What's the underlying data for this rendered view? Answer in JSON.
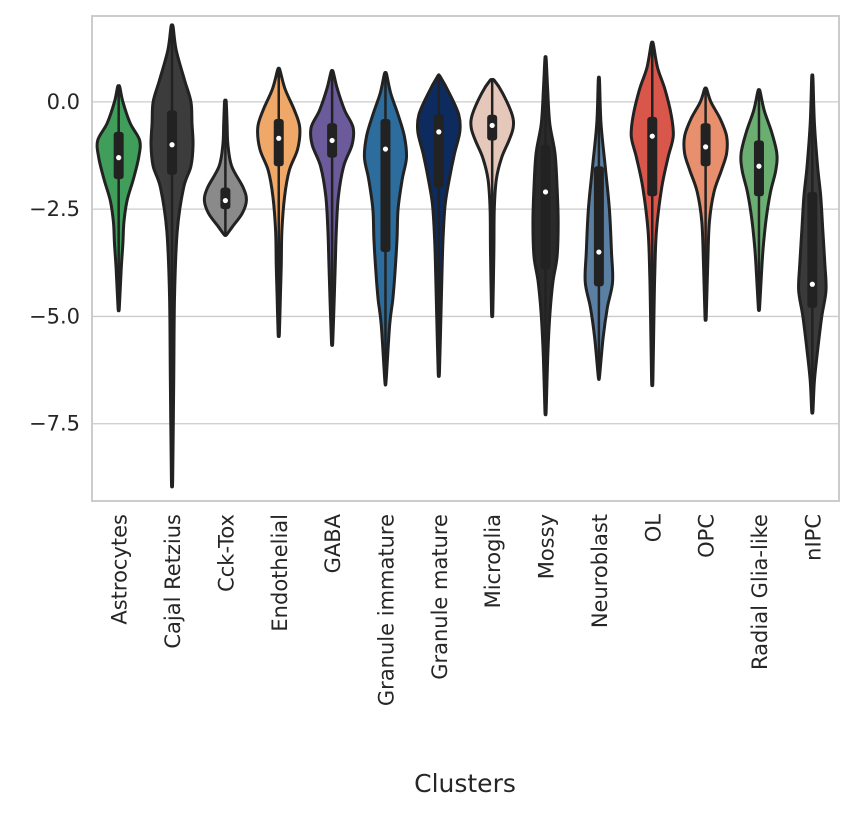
{
  "chart_data": {
    "type": "violin",
    "xlabel": "Clusters",
    "ylabel": "",
    "ylim": [
      -9.3,
      2.0
    ],
    "yticks": [
      0.0,
      -2.5,
      -5.0,
      -7.5
    ],
    "ytick_labels": [
      "0.0",
      "−2.5",
      "−5.0",
      "−7.5"
    ],
    "grid": "horizontal",
    "categories": [
      {
        "name": "Astrocytes",
        "color": "#3f9e5a",
        "min": -4.8,
        "max": 0.35,
        "q1": -1.8,
        "q3": -0.7,
        "median": -1.3,
        "profile": [
          [
            0.35,
            0.05
          ],
          [
            0.0,
            0.2
          ],
          [
            -0.5,
            0.55
          ],
          [
            -0.9,
            1.0
          ],
          [
            -1.3,
            0.95
          ],
          [
            -1.8,
            0.7
          ],
          [
            -2.3,
            0.4
          ],
          [
            -2.8,
            0.25
          ],
          [
            -3.3,
            0.2
          ],
          [
            -3.9,
            0.12
          ],
          [
            -4.8,
            0.03
          ]
        ]
      },
      {
        "name": "Cajal Retzius",
        "color": "#3c3c3c",
        "min": -8.8,
        "max": 1.75,
        "q1": -1.7,
        "q3": -0.2,
        "median": -1.0,
        "profile": [
          [
            1.75,
            0.05
          ],
          [
            1.2,
            0.2
          ],
          [
            0.5,
            0.6
          ],
          [
            0.0,
            0.9
          ],
          [
            -0.5,
            0.95
          ],
          [
            -1.0,
            1.0
          ],
          [
            -1.5,
            0.9
          ],
          [
            -2.0,
            0.55
          ],
          [
            -3.0,
            0.25
          ],
          [
            -4.5,
            0.12
          ],
          [
            -6.5,
            0.08
          ],
          [
            -8.8,
            0.03
          ]
        ]
      },
      {
        "name": "Cck-Tox",
        "color": "#8a8a8a",
        "min": -3.1,
        "max": 0.0,
        "q1": -2.5,
        "q3": -2.0,
        "median": -2.3,
        "profile": [
          [
            0.0,
            0.04
          ],
          [
            -0.5,
            0.08
          ],
          [
            -1.0,
            0.12
          ],
          [
            -1.5,
            0.3
          ],
          [
            -2.0,
            0.85
          ],
          [
            -2.3,
            1.0
          ],
          [
            -2.6,
            0.8
          ],
          [
            -2.9,
            0.35
          ],
          [
            -3.1,
            0.05
          ]
        ]
      },
      {
        "name": "Endothelial",
        "color": "#f0a868",
        "min": -5.4,
        "max": 0.75,
        "q1": -1.5,
        "q3": -0.4,
        "median": -0.85,
        "profile": [
          [
            0.75,
            0.05
          ],
          [
            0.3,
            0.3
          ],
          [
            -0.2,
            0.75
          ],
          [
            -0.6,
            1.0
          ],
          [
            -1.1,
            0.9
          ],
          [
            -1.6,
            0.5
          ],
          [
            -2.2,
            0.28
          ],
          [
            -3.0,
            0.15
          ],
          [
            -3.8,
            0.12
          ],
          [
            -4.5,
            0.08
          ],
          [
            -5.4,
            0.03
          ]
        ]
      },
      {
        "name": "GABA",
        "color": "#6b5b9a",
        "min": -5.6,
        "max": 0.7,
        "q1": -1.3,
        "q3": -0.5,
        "median": -0.9,
        "profile": [
          [
            0.7,
            0.05
          ],
          [
            0.3,
            0.25
          ],
          [
            -0.2,
            0.6
          ],
          [
            -0.6,
            1.0
          ],
          [
            -1.0,
            0.95
          ],
          [
            -1.5,
            0.55
          ],
          [
            -2.2,
            0.3
          ],
          [
            -3.0,
            0.2
          ],
          [
            -3.8,
            0.15
          ],
          [
            -4.6,
            0.1
          ],
          [
            -5.6,
            0.03
          ]
        ]
      },
      {
        "name": "Granule immature",
        "color": "#2c6d9e",
        "min": -6.5,
        "max": 0.65,
        "q1": -3.5,
        "q3": -0.4,
        "median": -1.1,
        "profile": [
          [
            0.65,
            0.05
          ],
          [
            0.2,
            0.25
          ],
          [
            -0.3,
            0.6
          ],
          [
            -0.8,
            0.9
          ],
          [
            -1.3,
            1.0
          ],
          [
            -1.8,
            0.8
          ],
          [
            -2.5,
            0.6
          ],
          [
            -3.2,
            0.55
          ],
          [
            -4.0,
            0.45
          ],
          [
            -4.6,
            0.35
          ],
          [
            -5.2,
            0.2
          ],
          [
            -6.5,
            0.03
          ]
        ]
      },
      {
        "name": "Granule mature",
        "color": "#0d2b5e",
        "min": -6.3,
        "max": 0.6,
        "q1": -2.0,
        "q3": -0.3,
        "median": -0.7,
        "profile": [
          [
            0.6,
            0.05
          ],
          [
            0.2,
            0.5
          ],
          [
            -0.3,
            0.95
          ],
          [
            -0.7,
            1.0
          ],
          [
            -1.2,
            0.75
          ],
          [
            -1.8,
            0.5
          ],
          [
            -2.4,
            0.3
          ],
          [
            -3.2,
            0.2
          ],
          [
            -4.0,
            0.15
          ],
          [
            -5.0,
            0.1
          ],
          [
            -6.3,
            0.03
          ]
        ]
      },
      {
        "name": "Microglia",
        "color": "#e6c8ba",
        "min": -4.9,
        "max": 0.5,
        "q1": -0.9,
        "q3": -0.3,
        "median": -0.55,
        "profile": [
          [
            0.5,
            0.1
          ],
          [
            0.2,
            0.5
          ],
          [
            -0.3,
            0.95
          ],
          [
            -0.6,
            1.0
          ],
          [
            -0.9,
            0.8
          ],
          [
            -1.3,
            0.45
          ],
          [
            -1.8,
            0.2
          ],
          [
            -2.5,
            0.1
          ],
          [
            -3.5,
            0.08
          ],
          [
            -4.9,
            0.03
          ]
        ]
      },
      {
        "name": "Mossy",
        "color": "#2a2a2a",
        "min": -7.2,
        "max": 1.0,
        "q1": -3.9,
        "q3": -1.0,
        "median": -2.1,
        "profile": [
          [
            1.0,
            0.03
          ],
          [
            0.3,
            0.1
          ],
          [
            -0.5,
            0.2
          ],
          [
            -1.2,
            0.45
          ],
          [
            -2.0,
            0.55
          ],
          [
            -2.8,
            0.6
          ],
          [
            -3.6,
            0.55
          ],
          [
            -4.2,
            0.35
          ],
          [
            -5.0,
            0.2
          ],
          [
            -6.0,
            0.1
          ],
          [
            -7.2,
            0.03
          ]
        ]
      },
      {
        "name": "Neuroblast",
        "color": "#5a7fa3",
        "min": -6.4,
        "max": 0.5,
        "q1": -4.3,
        "q3": -1.5,
        "median": -3.5,
        "profile": [
          [
            0.5,
            0.03
          ],
          [
            -0.5,
            0.1
          ],
          [
            -1.5,
            0.3
          ],
          [
            -2.5,
            0.5
          ],
          [
            -3.5,
            0.6
          ],
          [
            -4.2,
            0.65
          ],
          [
            -4.8,
            0.4
          ],
          [
            -5.5,
            0.2
          ],
          [
            -6.4,
            0.03
          ]
        ]
      },
      {
        "name": "OL",
        "color": "#d9564a",
        "min": -6.5,
        "max": 1.35,
        "q1": -2.2,
        "q3": -0.35,
        "median": -0.8,
        "profile": [
          [
            1.35,
            0.05
          ],
          [
            0.8,
            0.25
          ],
          [
            0.3,
            0.6
          ],
          [
            -0.3,
            0.9
          ],
          [
            -0.8,
            1.0
          ],
          [
            -1.3,
            0.75
          ],
          [
            -2.0,
            0.45
          ],
          [
            -3.0,
            0.2
          ],
          [
            -4.0,
            0.12
          ],
          [
            -5.0,
            0.08
          ],
          [
            -6.5,
            0.03
          ]
        ]
      },
      {
        "name": "OPC",
        "color": "#e8906e",
        "min": -5.0,
        "max": 0.3,
        "q1": -1.5,
        "q3": -0.5,
        "median": -1.05,
        "profile": [
          [
            0.3,
            0.05
          ],
          [
            0.0,
            0.25
          ],
          [
            -0.4,
            0.7
          ],
          [
            -0.8,
            1.0
          ],
          [
            -1.2,
            1.0
          ],
          [
            -1.6,
            0.75
          ],
          [
            -2.1,
            0.4
          ],
          [
            -2.8,
            0.18
          ],
          [
            -3.8,
            0.1
          ],
          [
            -5.0,
            0.03
          ]
        ]
      },
      {
        "name": "Radial Glia-like",
        "color": "#6aae72",
        "min": -4.8,
        "max": 0.25,
        "q1": -2.2,
        "q3": -0.9,
        "median": -1.5,
        "profile": [
          [
            0.25,
            0.05
          ],
          [
            -0.2,
            0.25
          ],
          [
            -0.7,
            0.6
          ],
          [
            -1.2,
            0.85
          ],
          [
            -1.6,
            0.8
          ],
          [
            -2.1,
            0.55
          ],
          [
            -2.7,
            0.35
          ],
          [
            -3.4,
            0.2
          ],
          [
            -4.0,
            0.12
          ],
          [
            -4.8,
            0.03
          ]
        ]
      },
      {
        "name": "nIPC",
        "color": "#3a3a3a",
        "min": -7.2,
        "max": 0.55,
        "q1": -4.8,
        "q3": -2.1,
        "median": -4.25,
        "profile": [
          [
            0.55,
            0.03
          ],
          [
            -0.5,
            0.1
          ],
          [
            -1.5,
            0.25
          ],
          [
            -2.2,
            0.4
          ],
          [
            -3.0,
            0.5
          ],
          [
            -3.8,
            0.6
          ],
          [
            -4.4,
            0.65
          ],
          [
            -5.0,
            0.45
          ],
          [
            -5.8,
            0.25
          ],
          [
            -6.5,
            0.1
          ],
          [
            -7.2,
            0.03
          ]
        ]
      }
    ]
  }
}
